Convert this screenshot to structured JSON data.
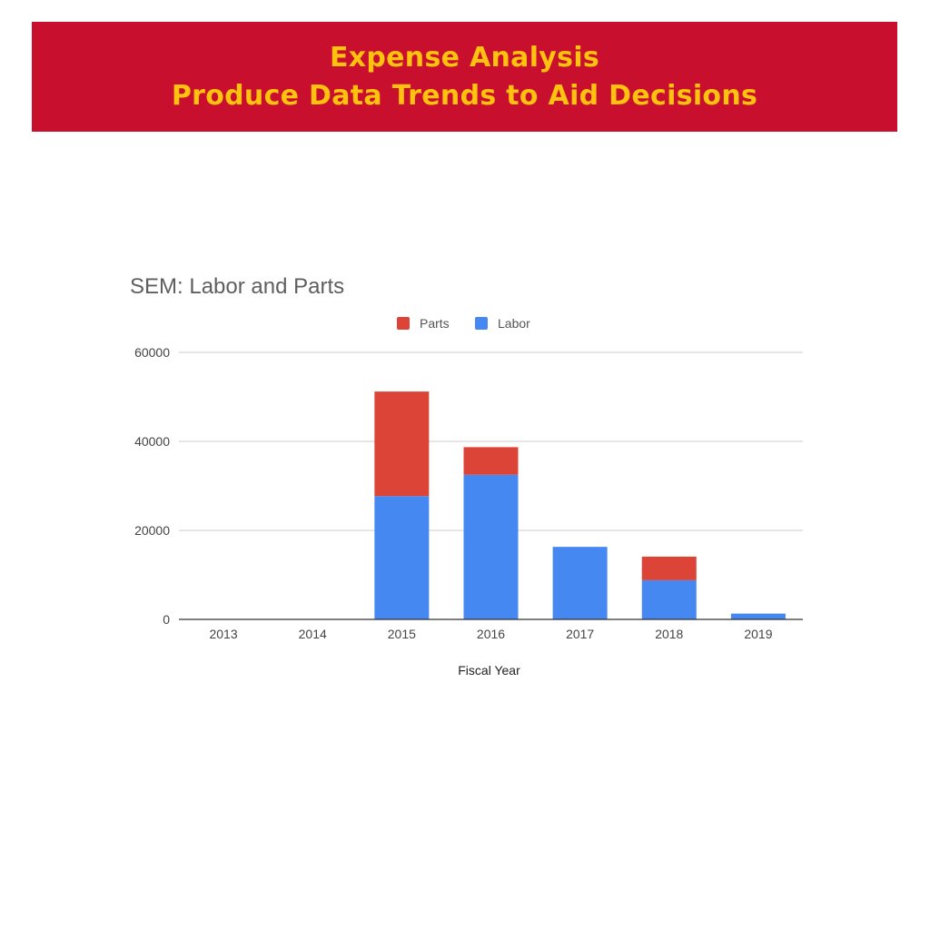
{
  "header": {
    "title_line1": "Expense Analysis",
    "title_line2": "Produce Data Trends to Aid Decisions"
  },
  "colors": {
    "banner": "#c8102e",
    "banner_text": "#ffc20e",
    "parts": "#db4437",
    "labor": "#4688f1"
  },
  "chart_data": {
    "type": "bar",
    "stacked": true,
    "title": "SEM: Labor and Parts",
    "xlabel": "Fiscal Year",
    "ylabel": "",
    "categories": [
      "2013",
      "2014",
      "2015",
      "2016",
      "2017",
      "2018",
      "2019"
    ],
    "series": [
      {
        "name": "Labor",
        "color": "#4688f1",
        "values": [
          0,
          0,
          27700,
          32500,
          16300,
          8800,
          1300
        ]
      },
      {
        "name": "Parts",
        "color": "#db4437",
        "values": [
          0,
          0,
          23500,
          6200,
          0,
          5300,
          0
        ]
      }
    ],
    "legend_order": [
      "Parts",
      "Labor"
    ],
    "legend_position": "top",
    "ylim": [
      0,
      60000
    ],
    "yticks": [
      0,
      20000,
      40000,
      60000
    ],
    "ytick_labels": [
      "0",
      "20000",
      "40000",
      "60000"
    ],
    "grid": true
  }
}
